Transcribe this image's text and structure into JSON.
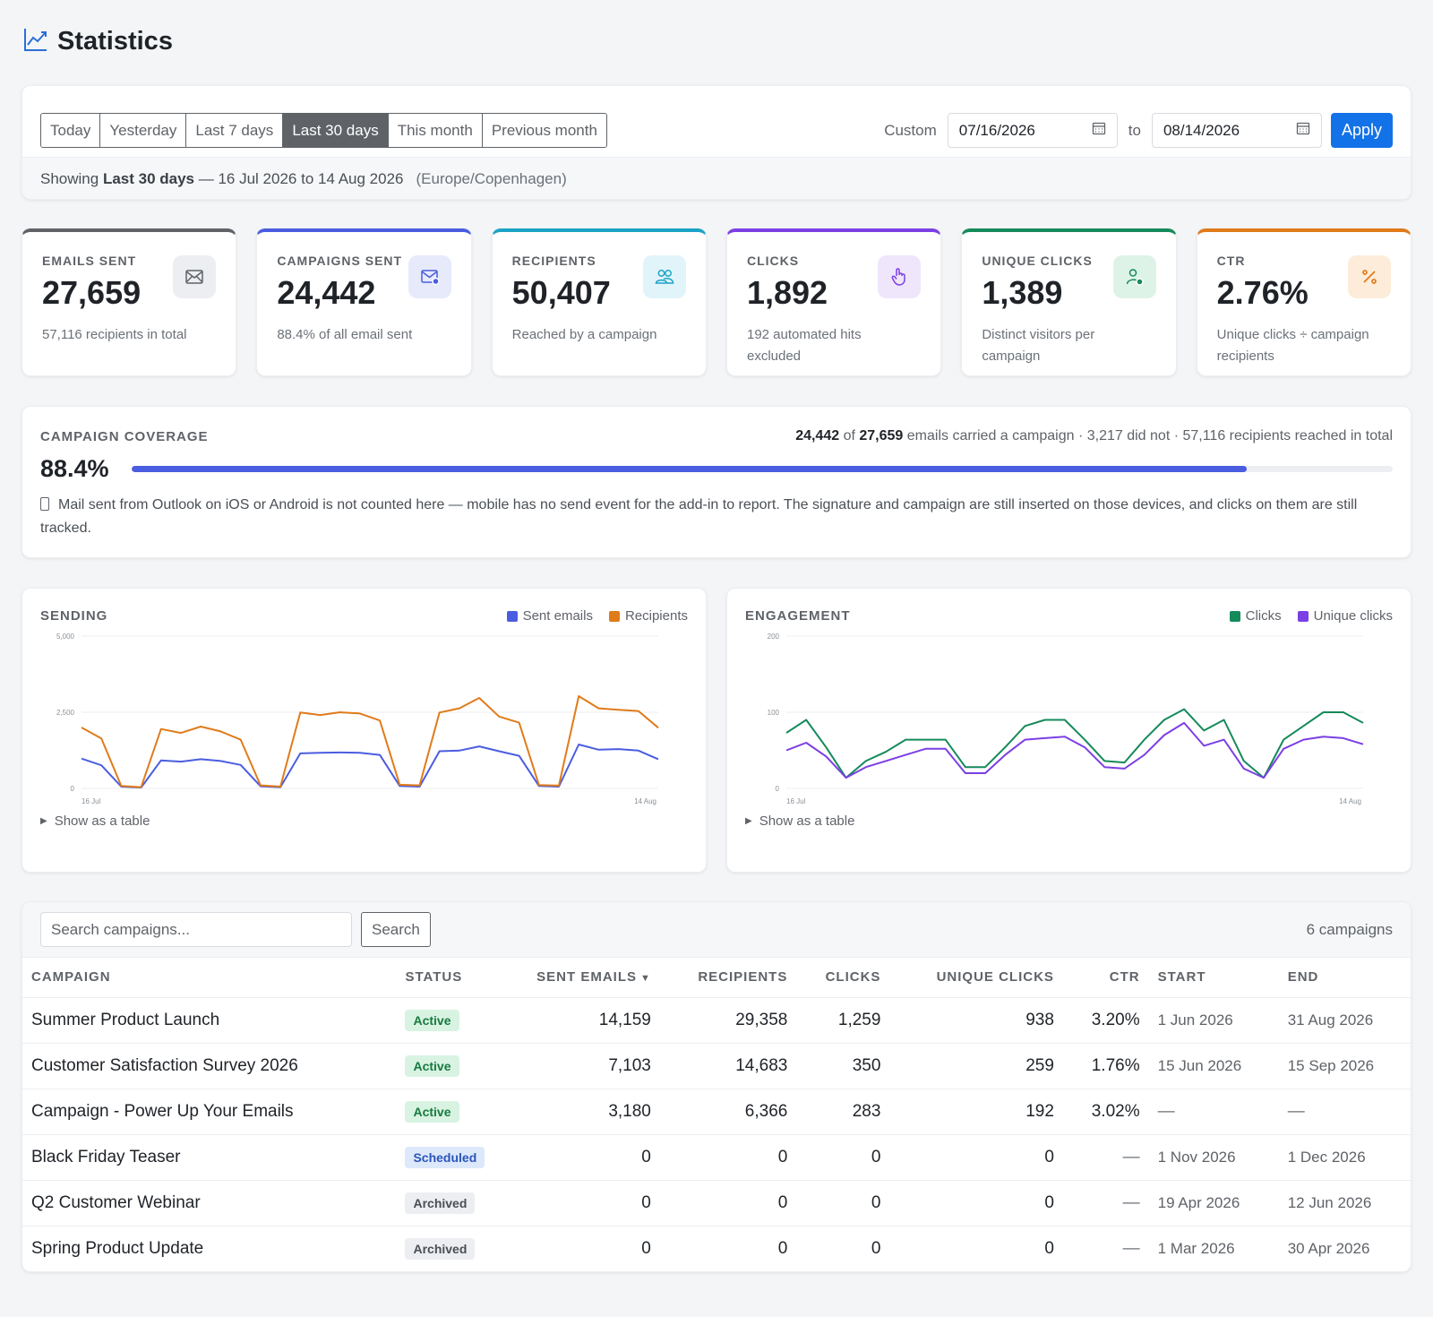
{
  "header": {
    "title": "Statistics",
    "icon": "trend-chart-icon"
  },
  "filters": {
    "ranges": [
      {
        "label": "Today",
        "active": false
      },
      {
        "label": "Yesterday",
        "active": false
      },
      {
        "label": "Last 7 days",
        "active": false
      },
      {
        "label": "Last 30 days",
        "active": true
      },
      {
        "label": "This month",
        "active": false
      },
      {
        "label": "Previous month",
        "active": false
      }
    ],
    "custom_label": "Custom",
    "from_date": "07/16/2026",
    "to_label": "to",
    "to_date": "08/14/2026",
    "apply_label": "Apply",
    "showing_prefix": "Showing",
    "showing_range": "Last 30 days",
    "showing_dates": "— 16 Jul 2026 to 14 Aug 2026",
    "timezone": "(Europe/Copenhagen)"
  },
  "kpis": [
    {
      "key": "emails-sent",
      "label": "EMAILS SENT",
      "value": "27,659",
      "sub": "57,116 recipients in total",
      "color": "#5f6368",
      "icon_bg": "#eceef1",
      "icon": "envelope-icon"
    },
    {
      "key": "campaigns-sent",
      "label": "CAMPAIGNS SENT",
      "value": "24,442",
      "sub": "88.4% of all email sent",
      "color": "#4a5de0",
      "icon_bg": "#e6eafb",
      "icon": "envelope-check-icon"
    },
    {
      "key": "recipients",
      "label": "RECIPIENTS",
      "value": "50,407",
      "sub": "Reached by a campaign",
      "color": "#1ba3c6",
      "icon_bg": "#e0f4f9",
      "icon": "users-icon"
    },
    {
      "key": "clicks",
      "label": "CLICKS",
      "value": "1,892",
      "sub": "192 automated hits excluded",
      "color": "#7b3fe4",
      "icon_bg": "#efe6fb",
      "icon": "pointer-hand-icon"
    },
    {
      "key": "unique-clicks",
      "label": "UNIQUE CLICKS",
      "value": "1,389",
      "sub": "Distinct visitors per campaign",
      "color": "#158a5a",
      "icon_bg": "#def3e8",
      "icon": "user-check-icon"
    },
    {
      "key": "ctr",
      "label": "CTR",
      "value": "2.76%",
      "sub": "Unique clicks ÷ campaign recipients",
      "color": "#e07b1a",
      "icon_bg": "#fcecd9",
      "icon": "percent-icon"
    }
  ],
  "coverage": {
    "label": "CAMPAIGN COVERAGE",
    "percent": "88.4%",
    "fill_fraction": 0.884,
    "summary_a": "24,442",
    "summary_of": "of",
    "summary_b": "27,659",
    "summary_rest": "emails carried a campaign · 3,217 did not · 57,116 recipients reached in total",
    "note": "Mail sent from Outlook on iOS or Android is not counted here — mobile has no send event for the add-in to report. The signature and campaign are still inserted on those devices, and clicks on them are still tracked.",
    "color": "#4a5de0"
  },
  "charts": {
    "sending": {
      "title": "SENDING",
      "show_table": "Show as a table",
      "chart_data": {
        "type": "line",
        "x_first_label": "16 Jul",
        "x_last_label": "14 Aug",
        "yticks": [
          "5,000",
          "2,500",
          "0"
        ],
        "ylim": [
          0,
          5000
        ],
        "series": [
          {
            "name": "Sent emails",
            "color": "#4a5de0",
            "values": [
              980,
              760,
              60,
              30,
              920,
              880,
              960,
              900,
              770,
              70,
              40,
              1150,
              1170,
              1180,
              1170,
              1100,
              80,
              60,
              1220,
              1240,
              1380,
              1220,
              1070,
              80,
              60,
              1440,
              1270,
              1290,
              1240,
              960
            ]
          },
          {
            "name": "Recipients",
            "color": "#e07b1a",
            "values": [
              2000,
              1640,
              80,
              40,
              1950,
              1820,
              2030,
              1870,
              1600,
              100,
              60,
              2490,
              2410,
              2500,
              2460,
              2230,
              120,
              100,
              2490,
              2630,
              2970,
              2360,
              2160,
              110,
              90,
              3030,
              2630,
              2580,
              2540,
              1990
            ]
          }
        ]
      }
    },
    "engagement": {
      "title": "ENGAGEMENT",
      "show_table": "Show as a table",
      "chart_data": {
        "type": "line",
        "x_first_label": "16 Jul",
        "x_last_label": "14 Aug",
        "yticks": [
          "200",
          "100",
          "0"
        ],
        "ylim": [
          0,
          200
        ],
        "series": [
          {
            "name": "Clicks",
            "color": "#158a5a",
            "values": [
              73,
              90,
              54,
              14,
              36,
              48,
              64,
              64,
              64,
              28,
              28,
              54,
              82,
              90,
              90,
              64,
              36,
              34,
              64,
              90,
              104,
              76,
              90,
              36,
              14,
              64,
              82,
              100,
              100,
              86
            ]
          },
          {
            "name": "Unique clicks",
            "color": "#7b3fe4",
            "values": [
              50,
              60,
              42,
              14,
              28,
              36,
              44,
              52,
              52,
              20,
              20,
              44,
              64,
              66,
              68,
              54,
              28,
              26,
              44,
              70,
              86,
              56,
              64,
              26,
              14,
              52,
              64,
              68,
              66,
              58
            ]
          }
        ]
      }
    }
  },
  "table": {
    "search_placeholder": "Search campaigns...",
    "search_label": "Search",
    "count_label": "6 campaigns",
    "columns": [
      "CAMPAIGN",
      "STATUS",
      "SENT EMAILS",
      "RECIPIENTS",
      "CLICKS",
      "UNIQUE CLICKS",
      "CTR",
      "START",
      "END"
    ],
    "rows": [
      {
        "campaign": "Summer Product Launch",
        "status": "Active",
        "status_kind": "active",
        "sent": "14,159",
        "recipients": "29,358",
        "clicks": "1,259",
        "unique": "938",
        "ctr": "3.20%",
        "start": "1 Jun 2026",
        "end": "31 Aug 2026"
      },
      {
        "campaign": "Customer Satisfaction Survey 2026",
        "status": "Active",
        "status_kind": "active",
        "sent": "7,103",
        "recipients": "14,683",
        "clicks": "350",
        "unique": "259",
        "ctr": "1.76%",
        "start": "15 Jun 2026",
        "end": "15 Sep 2026"
      },
      {
        "campaign": "Campaign - Power Up Your Emails",
        "status": "Active",
        "status_kind": "active",
        "sent": "3,180",
        "recipients": "6,366",
        "clicks": "283",
        "unique": "192",
        "ctr": "3.02%",
        "start": "—",
        "end": "—"
      },
      {
        "campaign": "Black Friday Teaser",
        "status": "Scheduled",
        "status_kind": "scheduled",
        "sent": "0",
        "recipients": "0",
        "clicks": "0",
        "unique": "0",
        "ctr": "—",
        "start": "1 Nov 2026",
        "end": "1 Dec 2026"
      },
      {
        "campaign": "Q2 Customer Webinar",
        "status": "Archived",
        "status_kind": "archived",
        "sent": "0",
        "recipients": "0",
        "clicks": "0",
        "unique": "0",
        "ctr": "—",
        "start": "19 Apr 2026",
        "end": "12 Jun 2026"
      },
      {
        "campaign": "Spring Product Update",
        "status": "Archived",
        "status_kind": "archived",
        "sent": "0",
        "recipients": "0",
        "clicks": "0",
        "unique": "0",
        "ctr": "—",
        "start": "1 Mar 2026",
        "end": "30 Apr 2026"
      }
    ]
  }
}
